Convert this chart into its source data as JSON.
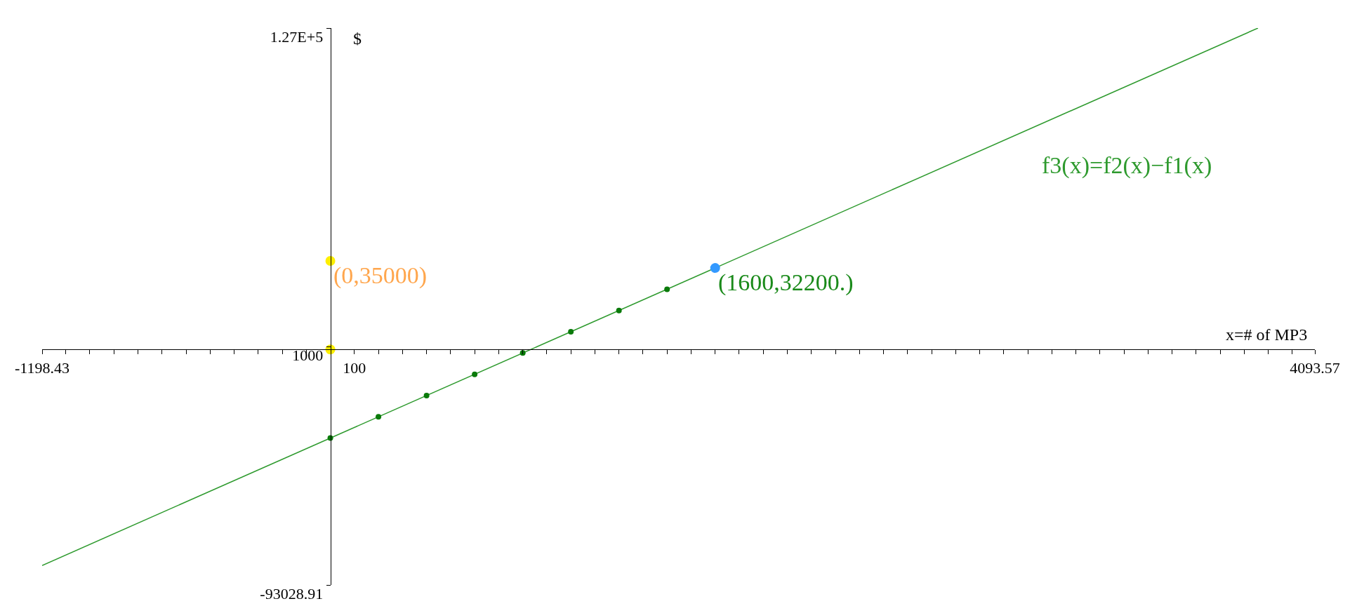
{
  "chart_data": {
    "type": "line",
    "xlabel": "x=# of MP3",
    "ylabel": "$",
    "xlim": [
      -1198.43,
      4093.57
    ],
    "ylim": [
      -93028.91,
      127000
    ],
    "xticks": [
      {
        "value": -1198.43,
        "label": "-1198.43"
      },
      {
        "value": -1100,
        "label": null
      },
      {
        "value": -1000,
        "label": null
      },
      {
        "value": -900,
        "label": null
      },
      {
        "value": -800,
        "label": null
      },
      {
        "value": -700,
        "label": null
      },
      {
        "value": -600,
        "label": null
      },
      {
        "value": -500,
        "label": null
      },
      {
        "value": -400,
        "label": null
      },
      {
        "value": -300,
        "label": null
      },
      {
        "value": -200,
        "label": null
      },
      {
        "value": -100,
        "label": null
      },
      {
        "value": 100,
        "label": "100"
      },
      {
        "value": 200,
        "label": null
      },
      {
        "value": 300,
        "label": null
      },
      {
        "value": 400,
        "label": null
      },
      {
        "value": 500,
        "label": null
      },
      {
        "value": 600,
        "label": null
      },
      {
        "value": 700,
        "label": null
      },
      {
        "value": 800,
        "label": null
      },
      {
        "value": 900,
        "label": null
      },
      {
        "value": 1000,
        "label": null
      },
      {
        "value": 1100,
        "label": null
      },
      {
        "value": 1200,
        "label": null
      },
      {
        "value": 1300,
        "label": null
      },
      {
        "value": 1400,
        "label": null
      },
      {
        "value": 1500,
        "label": null
      },
      {
        "value": 1600,
        "label": null
      },
      {
        "value": 1700,
        "label": null
      },
      {
        "value": 1800,
        "label": null
      },
      {
        "value": 1900,
        "label": null
      },
      {
        "value": 2000,
        "label": null
      },
      {
        "value": 2100,
        "label": null
      },
      {
        "value": 2200,
        "label": null
      },
      {
        "value": 2300,
        "label": null
      },
      {
        "value": 2400,
        "label": null
      },
      {
        "value": 2500,
        "label": null
      },
      {
        "value": 2600,
        "label": null
      },
      {
        "value": 2700,
        "label": null
      },
      {
        "value": 2800,
        "label": null
      },
      {
        "value": 2900,
        "label": null
      },
      {
        "value": 3000,
        "label": null
      },
      {
        "value": 3100,
        "label": null
      },
      {
        "value": 3200,
        "label": null
      },
      {
        "value": 3300,
        "label": null
      },
      {
        "value": 3400,
        "label": null
      },
      {
        "value": 3500,
        "label": null
      },
      {
        "value": 3600,
        "label": null
      },
      {
        "value": 3700,
        "label": null
      },
      {
        "value": 3800,
        "label": null
      },
      {
        "value": 3900,
        "label": null
      },
      {
        "value": 4000,
        "label": null
      },
      {
        "value": 4093.57,
        "label": "4093.57"
      }
    ],
    "yticks": [
      {
        "value": -93028.91,
        "label": "-93028.91"
      },
      {
        "value": 1000,
        "label": "1000"
      },
      {
        "value": 127000,
        "label": "1.27E+5"
      }
    ],
    "grid": false,
    "legend": false,
    "series": [
      {
        "name": "f3(x)=f2(x)−f1(x)",
        "color": "#2e9a2e",
        "marker": "none",
        "x": [
          -1198.43,
          3857
        ],
        "values": [
          -85334.06,
          126994
        ]
      },
      {
        "color": "#0a7a0a",
        "type": "scatter",
        "marker": "circle",
        "x": [
          0,
          200,
          400,
          600,
          800,
          1000,
          1200,
          1400
        ],
        "values": [
          -35000,
          -26600,
          -18200,
          -9800,
          -1400,
          7000,
          15400,
          23800
        ]
      },
      {
        "color": "#ffee00",
        "type": "scatter",
        "marker": "circle",
        "x": [
          0,
          0
        ],
        "values": [
          35000,
          0
        ]
      },
      {
        "color": "#3399ff",
        "type": "scatter",
        "marker": "circle",
        "x": [
          1600
        ],
        "values": [
          32200
        ]
      }
    ],
    "annotations": [
      {
        "text": "(0,35000)",
        "x": 0,
        "y": 35000
      },
      {
        "text": "(1600,32200.)",
        "x": 1600,
        "y": 32200
      }
    ]
  }
}
